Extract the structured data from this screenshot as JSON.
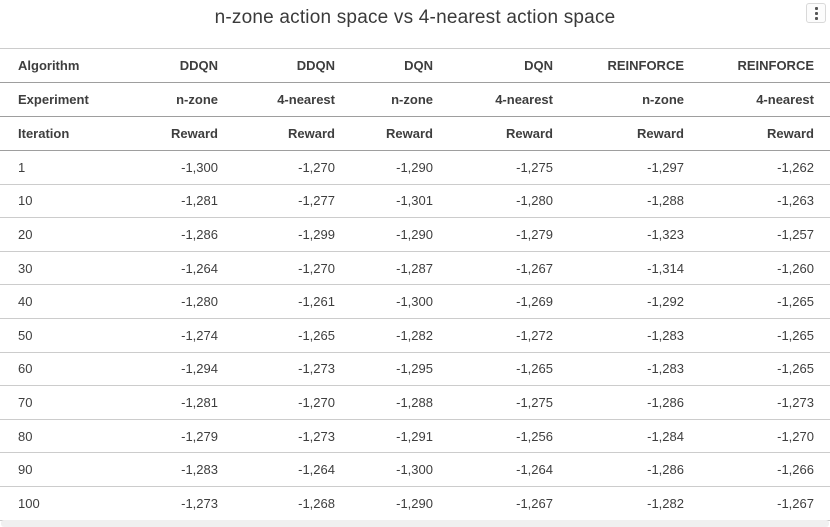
{
  "panel": {
    "title": "n-zone action space vs 4-nearest action space",
    "menu_icon": "kebab-vertical"
  },
  "colors": {
    "text": "#3e3e3e",
    "header_border": "#9e9e9e",
    "row_border": "#cccccc",
    "scrollbar_track": "#f0f0f0",
    "background": "#ffffff"
  },
  "chart_data": {
    "type": "table",
    "title": "n-zone action space vs 4-nearest action space",
    "layout": {
      "first_column_align": "left",
      "value_columns_align": "right",
      "grid": "horizontal-lines-only"
    },
    "header_rows": [
      {
        "label": "Algorithm",
        "cells": [
          "DDQN",
          "DDQN",
          "DQN",
          "DQN",
          "REINFORCE",
          "REINFORCE"
        ]
      },
      {
        "label": "Experiment",
        "cells": [
          "n-zone",
          "4-nearest",
          "n-zone",
          "4-nearest",
          "n-zone",
          "4-nearest"
        ]
      },
      {
        "label": "Iteration",
        "cells": [
          "Reward",
          "Reward",
          "Reward",
          "Reward",
          "Reward",
          "Reward"
        ]
      }
    ],
    "rows": [
      {
        "iteration": "1",
        "rewards": [
          "-1,300",
          "-1,270",
          "-1,290",
          "-1,275",
          "-1,297",
          "-1,262"
        ]
      },
      {
        "iteration": "10",
        "rewards": [
          "-1,281",
          "-1,277",
          "-1,301",
          "-1,280",
          "-1,288",
          "-1,263"
        ]
      },
      {
        "iteration": "20",
        "rewards": [
          "-1,286",
          "-1,299",
          "-1,290",
          "-1,279",
          "-1,323",
          "-1,257"
        ]
      },
      {
        "iteration": "30",
        "rewards": [
          "-1,264",
          "-1,270",
          "-1,287",
          "-1,267",
          "-1,314",
          "-1,260"
        ]
      },
      {
        "iteration": "40",
        "rewards": [
          "-1,280",
          "-1,261",
          "-1,300",
          "-1,269",
          "-1,292",
          "-1,265"
        ]
      },
      {
        "iteration": "50",
        "rewards": [
          "-1,274",
          "-1,265",
          "-1,282",
          "-1,272",
          "-1,283",
          "-1,265"
        ]
      },
      {
        "iteration": "60",
        "rewards": [
          "-1,294",
          "-1,273",
          "-1,295",
          "-1,265",
          "-1,283",
          "-1,265"
        ]
      },
      {
        "iteration": "70",
        "rewards": [
          "-1,281",
          "-1,270",
          "-1,288",
          "-1,275",
          "-1,286",
          "-1,273"
        ]
      },
      {
        "iteration": "80",
        "rewards": [
          "-1,279",
          "-1,273",
          "-1,291",
          "-1,256",
          "-1,284",
          "-1,270"
        ]
      },
      {
        "iteration": "90",
        "rewards": [
          "-1,283",
          "-1,264",
          "-1,300",
          "-1,264",
          "-1,286",
          "-1,266"
        ]
      },
      {
        "iteration": "100",
        "rewards": [
          "-1,273",
          "-1,268",
          "-1,290",
          "-1,267",
          "-1,282",
          "-1,267"
        ]
      }
    ]
  }
}
